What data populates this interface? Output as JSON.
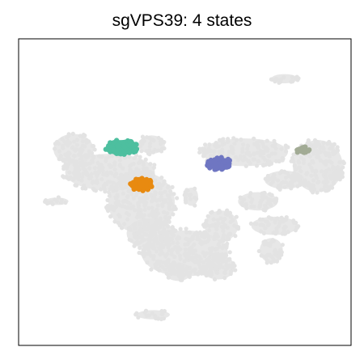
{
  "chart_data": {
    "type": "scatter",
    "title": "sgVPS39: 4 states",
    "xlabel": "",
    "ylabel": "",
    "grid": false,
    "legend": "none",
    "axes_ticks": false,
    "background_color": "#e3e3e3",
    "series": [
      {
        "color": "#e3e3e3",
        "role": "background",
        "clusters": [
          {
            "cx": 0.275,
            "cy": 0.565,
            "rx": 0.135,
            "ry": 0.06
          },
          {
            "cx": 0.165,
            "cy": 0.64,
            "rx": 0.06,
            "ry": 0.05
          },
          {
            "cx": 0.37,
            "cy": 0.465,
            "rx": 0.1,
            "ry": 0.1
          },
          {
            "cx": 0.395,
            "cy": 0.365,
            "rx": 0.07,
            "ry": 0.05
          },
          {
            "cx": 0.5,
            "cy": 0.3,
            "rx": 0.13,
            "ry": 0.075
          },
          {
            "cx": 0.6,
            "cy": 0.255,
            "rx": 0.05,
            "ry": 0.04
          },
          {
            "cx": 0.61,
            "cy": 0.39,
            "rx": 0.05,
            "ry": 0.05
          },
          {
            "cx": 0.4,
            "cy": 0.655,
            "rx": 0.04,
            "ry": 0.03
          },
          {
            "cx": 0.68,
            "cy": 0.63,
            "rx": 0.13,
            "ry": 0.045
          },
          {
            "cx": 0.9,
            "cy": 0.585,
            "rx": 0.075,
            "ry": 0.085
          },
          {
            "cx": 0.8,
            "cy": 0.54,
            "rx": 0.06,
            "ry": 0.03
          },
          {
            "cx": 0.72,
            "cy": 0.47,
            "rx": 0.06,
            "ry": 0.03
          },
          {
            "cx": 0.77,
            "cy": 0.39,
            "rx": 0.07,
            "ry": 0.03
          },
          {
            "cx": 0.76,
            "cy": 0.31,
            "rx": 0.035,
            "ry": 0.04
          },
          {
            "cx": 0.95,
            "cy": 0.56,
            "rx": 0.03,
            "ry": 0.02
          },
          {
            "cx": 0.115,
            "cy": 0.47,
            "rx": 0.035,
            "ry": 0.012
          },
          {
            "cx": 0.8,
            "cy": 0.87,
            "rx": 0.04,
            "ry": 0.015
          },
          {
            "cx": 0.405,
            "cy": 0.1,
            "rx": 0.05,
            "ry": 0.015
          },
          {
            "cx": 0.52,
            "cy": 0.485,
            "rx": 0.02,
            "ry": 0.03
          },
          {
            "cx": 0.48,
            "cy": 0.24,
            "rx": 0.04,
            "ry": 0.03
          }
        ]
      },
      {
        "color": "#4dbf9f",
        "clusters": [
          {
            "cx": 0.31,
            "cy": 0.645,
            "rx": 0.048,
            "ry": 0.025
          }
        ]
      },
      {
        "color": "#e88a10",
        "clusters": [
          {
            "cx": 0.368,
            "cy": 0.525,
            "rx": 0.036,
            "ry": 0.02
          }
        ]
      },
      {
        "color": "#6f76c2",
        "clusters": [
          {
            "cx": 0.603,
            "cy": 0.593,
            "rx": 0.038,
            "ry": 0.02
          }
        ]
      },
      {
        "color": "#a2ab95",
        "clusters": [
          {
            "cx": 0.852,
            "cy": 0.638,
            "rx": 0.022,
            "ry": 0.011
          }
        ]
      }
    ]
  }
}
